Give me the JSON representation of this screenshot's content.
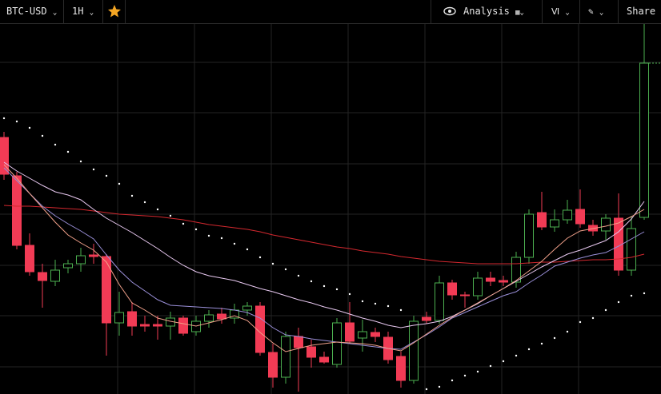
{
  "toolbar": {
    "symbol": "BTC-USD",
    "interval": "1H",
    "analysis": "Analysis",
    "share": "Share D"
  },
  "chart_data": {
    "type": "candlestick",
    "ylim": [
      0,
      463
    ],
    "up_color": "#4caf50",
    "down_color": "#f23b55",
    "open": [
      321,
      273,
      186,
      152,
      141,
      158,
      163,
      174,
      172,
      89,
      103,
      87,
      87,
      85,
      95,
      78,
      91,
      100,
      95,
      105,
      110,
      52,
      21,
      72,
      59,
      46,
      37,
      89,
      70,
      77,
      71,
      47,
      17,
      96,
      92,
      139,
      124,
      123,
      145,
      142,
      140,
      171,
      227,
      209,
      218,
      231,
      211,
      204,
      220,
      155,
      221
    ],
    "high": [
      328,
      278,
      201,
      163,
      168,
      168,
      183,
      188,
      175,
      128,
      115,
      98,
      98,
      103,
      98,
      98,
      105,
      108,
      113,
      115,
      115,
      63,
      78,
      83,
      68,
      53,
      95,
      115,
      93,
      83,
      78,
      53,
      98,
      103,
      148,
      143,
      128,
      153,
      153,
      148,
      178,
      231,
      253,
      231,
      243,
      256,
      218,
      225,
      251,
      223,
      463
    ],
    "low": [
      268,
      181,
      148,
      108,
      135,
      151,
      153,
      163,
      48,
      73,
      73,
      78,
      68,
      68,
      73,
      73,
      83,
      88,
      88,
      98,
      48,
      8,
      13,
      3,
      33,
      38,
      33,
      63,
      53,
      65,
      38,
      8,
      13,
      88,
      88,
      118,
      108,
      118,
      135,
      135,
      133,
      163,
      205,
      203,
      213,
      208,
      198,
      193,
      148,
      148,
      218
    ],
    "close": [
      275,
      186,
      153,
      142,
      155,
      163,
      173,
      172,
      89,
      102,
      85,
      85,
      85,
      95,
      76,
      91,
      99,
      94,
      105,
      110,
      52,
      21,
      72,
      58,
      46,
      40,
      89,
      66,
      78,
      72,
      43,
      17,
      91,
      92,
      139,
      124,
      123,
      145,
      141,
      140,
      171,
      225,
      209,
      218,
      230,
      213,
      204,
      220,
      155,
      207,
      414
    ],
    "series": [
      {
        "color": "#d4282f",
        "values": [
          236,
          235,
          235,
          234,
          233,
          232,
          231,
          229,
          227,
          225,
          224,
          223,
          222,
          220,
          218,
          215,
          212,
          210,
          208,
          206,
          203,
          199,
          196,
          193,
          190,
          187,
          184,
          182,
          179,
          177,
          175,
          172,
          170,
          168,
          166,
          165,
          164,
          163,
          163,
          163,
          163,
          164,
          165,
          165,
          166,
          167,
          168,
          168,
          169,
          171,
          175
        ]
      },
      {
        "color": "#e8c8f0",
        "values": [
          290,
          279,
          270,
          261,
          253,
          249,
          243,
          231,
          220,
          211,
          202,
          192,
          182,
          171,
          161,
          153,
          148,
          145,
          142,
          137,
          132,
          128,
          123,
          118,
          114,
          109,
          105,
          100,
          95,
          91,
          86,
          83,
          86,
          88,
          91,
          97,
          105,
          113,
          123,
          132,
          141,
          150,
          159,
          167,
          175,
          180,
          186,
          192,
          203,
          219,
          241
        ]
      },
      {
        "color": "#9a8fd8",
        "values": [
          283,
          267,
          251,
          235,
          223,
          213,
          204,
          194,
          174,
          155,
          140,
          129,
          118,
          111,
          110,
          109,
          108,
          107,
          105,
          102,
          95,
          83,
          74,
          72,
          69,
          67,
          65,
          63,
          61,
          59,
          57,
          56,
          65,
          74,
          84,
          95,
          102,
          109,
          116,
          123,
          128,
          139,
          149,
          160,
          165,
          170,
          174,
          177,
          185,
          194,
          203
        ]
      },
      {
        "color": "#f0a08a",
        "values": [
          287,
          270,
          251,
          233,
          215,
          199,
          189,
          180,
          165,
          137,
          114,
          105,
          95,
          91,
          88,
          85,
          89,
          93,
          98,
          92,
          77,
          64,
          53,
          57,
          61,
          63,
          65,
          64,
          63,
          61,
          57,
          54,
          64,
          75,
          86,
          96,
          105,
          114,
          123,
          132,
          142,
          154,
          166,
          181,
          195,
          204,
          207,
          210,
          214,
          222,
          231
        ]
      }
    ],
    "dots": {
      "color": "#ffffff",
      "values": [
        345,
        341,
        333,
        323,
        312,
        303,
        291,
        281,
        273,
        263,
        248,
        240,
        231,
        223,
        213,
        206,
        198,
        195,
        188,
        181,
        171,
        163,
        156,
        148,
        141,
        135,
        131,
        125,
        116,
        113,
        110,
        105,
        null,
        6,
        9,
        17,
        23,
        28,
        35,
        41,
        48,
        56,
        63,
        70,
        78,
        90,
        95,
        105,
        115,
        123,
        126
      ]
    }
  }
}
